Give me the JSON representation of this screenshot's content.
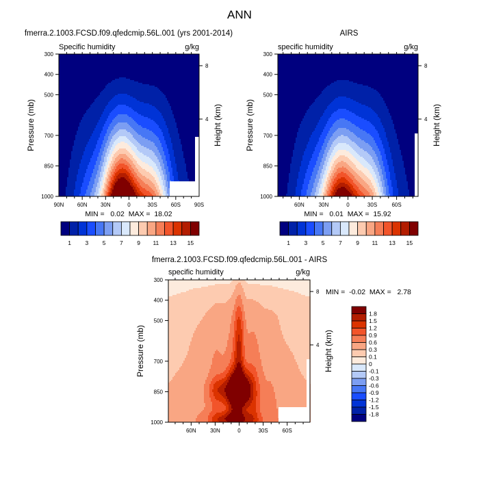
{
  "figure_title": "ANN",
  "chart_data": [
    {
      "type": "heatmap",
      "title": "fmerra.2.1003.FCSD.f09.qfedcmip.56L.001 (yrs 2001-2014)",
      "left_label": "Specific humidity",
      "units": "g/kg",
      "ylabel": "Pressure (mb)",
      "ylabel_right": "Height (km)",
      "yticks": [
        "300",
        "400",
        "500",
        "700",
        "850",
        "1000"
      ],
      "yticks_right": [
        "8",
        "4"
      ],
      "xticks": [
        "90N",
        "60N",
        "30N",
        "0",
        "30S",
        "60S",
        "90S"
      ],
      "stats": "MIN =   0.02  MAX =  18.02",
      "min": 0.02,
      "max": 18.02,
      "ylim": [
        1000,
        300
      ],
      "xlim": [
        90,
        -90
      ],
      "levels": [
        1,
        2,
        3,
        4,
        5,
        6,
        7,
        8,
        9,
        10,
        11,
        12,
        13,
        14,
        15
      ],
      "colorbar_labels": [
        "1",
        "3",
        "5",
        "7",
        "9",
        "11",
        "13",
        "15"
      ]
    },
    {
      "type": "heatmap",
      "title": "AIRS",
      "left_label": "specific humidity",
      "units": "g/kg",
      "ylabel": "Pressure (mb)",
      "ylabel_right": "Height (km)",
      "yticks": [
        "300",
        "400",
        "500",
        "700",
        "850",
        "1000"
      ],
      "yticks_right": [
        "8",
        "4"
      ],
      "xticks": [
        "60N",
        "30N",
        "0",
        "30S",
        "60S"
      ],
      "stats": "MIN =   0.01  MAX =  15.92",
      "min": 0.01,
      "max": 15.92,
      "ylim": [
        1000,
        300
      ],
      "levels": [
        1,
        2,
        3,
        4,
        5,
        6,
        7,
        8,
        9,
        10,
        11,
        12,
        13,
        14,
        15
      ],
      "colorbar_labels": [
        "1",
        "3",
        "5",
        "7",
        "9",
        "11",
        "13",
        "15"
      ]
    },
    {
      "type": "heatmap",
      "title": "fmerra.2.1003.FCSD.f09.qfedcmip.56L.001 - AIRS",
      "left_label": "specific humidity",
      "units": "g/kg",
      "ylabel": "Pressure (mb)",
      "ylabel_right": "Height (km)",
      "yticks": [
        "300",
        "400",
        "500",
        "700",
        "850",
        "1000"
      ],
      "yticks_right": [
        "8",
        "4"
      ],
      "xticks": [
        "60N",
        "30N",
        "0",
        "30S",
        "60S"
      ],
      "stats": "MIN =  -0.02  MAX =   2.78",
      "min": -0.02,
      "max": 2.78,
      "ylim": [
        1000,
        300
      ],
      "levels": [
        -1.8,
        -1.5,
        -1.2,
        -0.9,
        -0.6,
        -0.3,
        -0.1,
        0,
        0.1,
        0.3,
        0.6,
        0.9,
        1.2,
        1.5,
        1.8
      ],
      "colorbar_labels": [
        "1.8",
        "1.5",
        "1.2",
        "0.9",
        "0.6",
        "0.3",
        "0.1",
        "0",
        "-0.1",
        "-0.3",
        "-0.6",
        "-0.9",
        "-1.2",
        "-1.5",
        "-1.8"
      ]
    }
  ],
  "colors": {
    "sequential": [
      "#00007f",
      "#0021a8",
      "#0033d6",
      "#1a4dff",
      "#4777f5",
      "#7c9ef2",
      "#b3c9f7",
      "#d9e8fb",
      "#fdebdd",
      "#fdcbb0",
      "#f9a683",
      "#f57e57",
      "#f2542a",
      "#db3300",
      "#b31d00",
      "#800000"
    ],
    "missing": "#ffffff"
  }
}
